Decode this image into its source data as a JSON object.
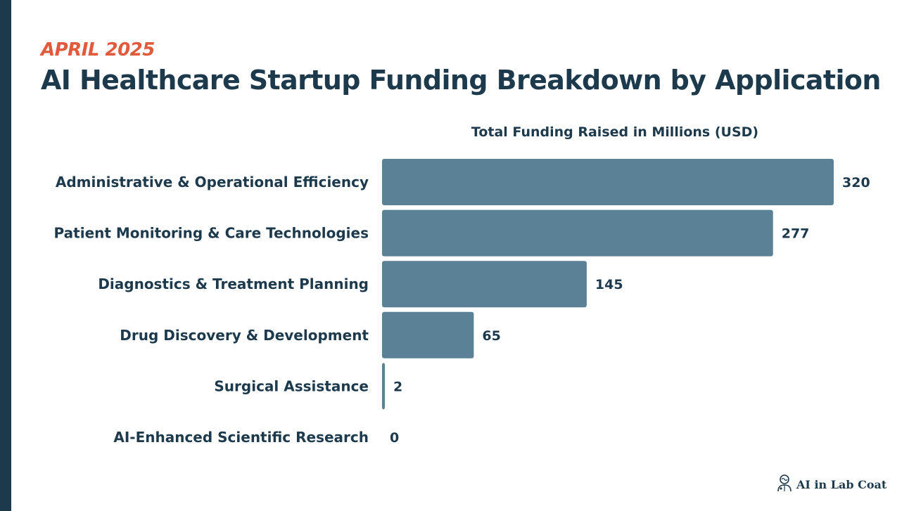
{
  "header": {
    "eyebrow": "APRIL 2025",
    "title": "AI Healthcare Startup Funding Breakdown by Application"
  },
  "brand": {
    "name": "AI in Lab Coat",
    "icon": "doctor-brain-icon"
  },
  "colors": {
    "bar": "#5a8196",
    "text": "#1d3a4d",
    "accent": "#e25a3c",
    "stripe": "#1d3a4d"
  },
  "chart_data": {
    "type": "bar",
    "orientation": "horizontal",
    "title": "Total Funding Raised in Millions (USD)",
    "xlabel": "",
    "ylabel": "",
    "categories": [
      "Administrative & Operational Efficiency",
      "Patient Monitoring & Care Technologies",
      "Diagnostics & Treatment Planning",
      "Drug Discovery & Development",
      "Surgical Assistance",
      "AI-Enhanced Scientific Research"
    ],
    "values": [
      320,
      277,
      145,
      65,
      2,
      0
    ],
    "xlim": [
      0,
      320
    ],
    "grid": false,
    "legend": "none"
  }
}
